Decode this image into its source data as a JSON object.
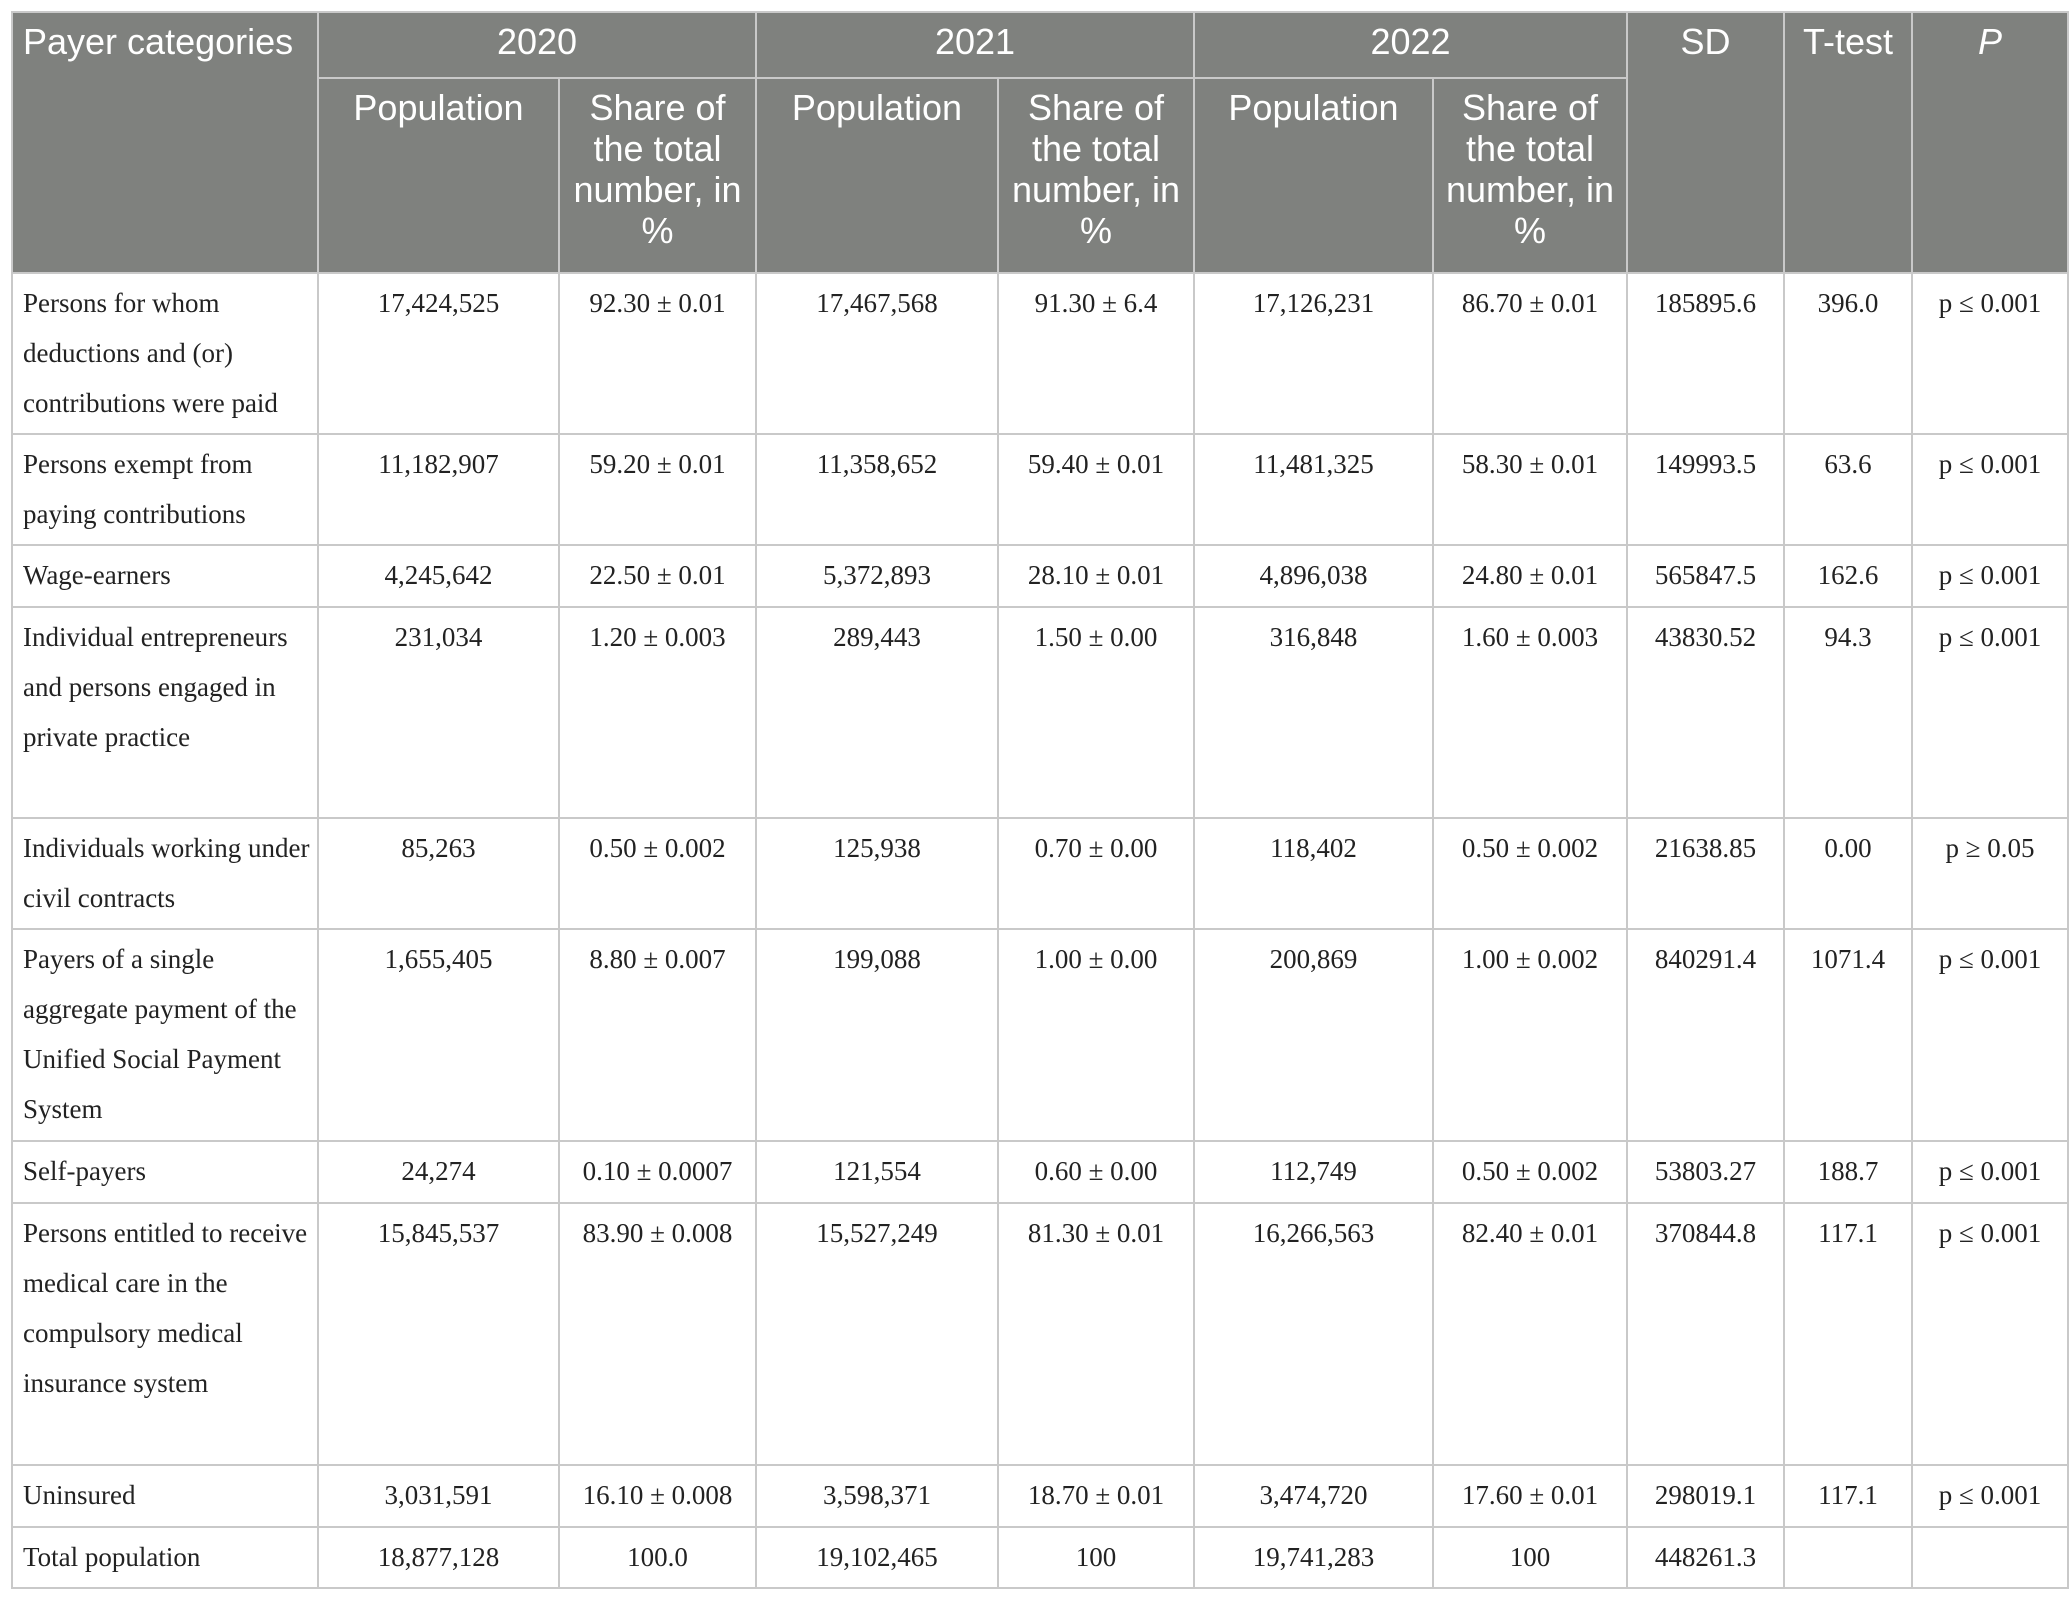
{
  "table": {
    "header": {
      "first": "Payer categories",
      "years": [
        "2020",
        "2021",
        "2022"
      ],
      "sub": [
        "Population",
        "Share of the total number, in %"
      ],
      "sd": "SD",
      "ttest": "T-test",
      "p": "P"
    },
    "rows": [
      [
        "Persons for whom deductions and (or) contributions were paid",
        "17,424,525",
        "92.30 ± 0.01",
        "17,467,568",
        "91.30 ± 6.4",
        "17,126,231",
        "86.70 ± 0.01",
        "185895.6",
        "396.0",
        "p ≤ 0.001"
      ],
      [
        "Persons exempt from paying contributions",
        "11,182,907",
        "59.20 ± 0.01",
        "11,358,652",
        "59.40 ± 0.01",
        "11,481,325",
        "58.30 ± 0.01",
        "149993.5",
        "63.6",
        "p ≤ 0.001"
      ],
      [
        "Wage-earners",
        "4,245,642",
        "22.50 ± 0.01",
        "5,372,893",
        "28.10 ± 0.01",
        "4,896,038",
        "24.80 ± 0.01",
        "565847.5",
        "162.6",
        "p ≤ 0.001"
      ],
      [
        "Individual entrepreneurs and persons engaged in private practice",
        "231,034",
        "1.20 ± 0.003",
        "289,443",
        "1.50 ± 0.00",
        "316,848",
        "1.60 ± 0.003",
        "43830.52",
        "94.3",
        "p ≤ 0.001"
      ],
      [
        "Individuals working under civil contracts",
        "85,263",
        "0.50 ± 0.002",
        "125,938",
        "0.70 ± 0.00",
        "118,402",
        "0.50 ± 0.002",
        "21638.85",
        "0.00",
        "p ≥ 0.05"
      ],
      [
        "Payers of a single aggregate payment of the Unified Social Payment System",
        "1,655,405",
        "8.80 ± 0.007",
        "199,088",
        "1.00 ± 0.00",
        "200,869",
        "1.00 ± 0.002",
        "840291.4",
        "1071.4",
        "p ≤ 0.001"
      ],
      [
        "Self-payers",
        "24,274",
        "0.10 ± 0.0007",
        "121,554",
        "0.60 ± 0.00",
        "112,749",
        "0.50 ± 0.002",
        "53803.27",
        "188.7",
        "p ≤ 0.001"
      ],
      [
        "Persons entitled to receive medical care in the compulsory medical insurance system",
        "15,845,537",
        "83.90 ± 0.008",
        "15,527,249",
        "81.30 ± 0.01",
        "16,266,563",
        "82.40 ± 0.01",
        "370844.8",
        "117.1",
        "p ≤ 0.001"
      ],
      [
        "Uninsured",
        "3,031,591",
        "16.10 ± 0.008",
        "3,598,371",
        "18.70 ± 0.01",
        "3,474,720",
        "17.60 ± 0.01",
        "298019.1",
        "117.1",
        "p ≤ 0.001"
      ],
      [
        "Total population",
        "18,877,128",
        "100.0",
        "19,102,465",
        "100",
        "19,741,283",
        "100",
        "448261.3"
      ]
    ]
  }
}
